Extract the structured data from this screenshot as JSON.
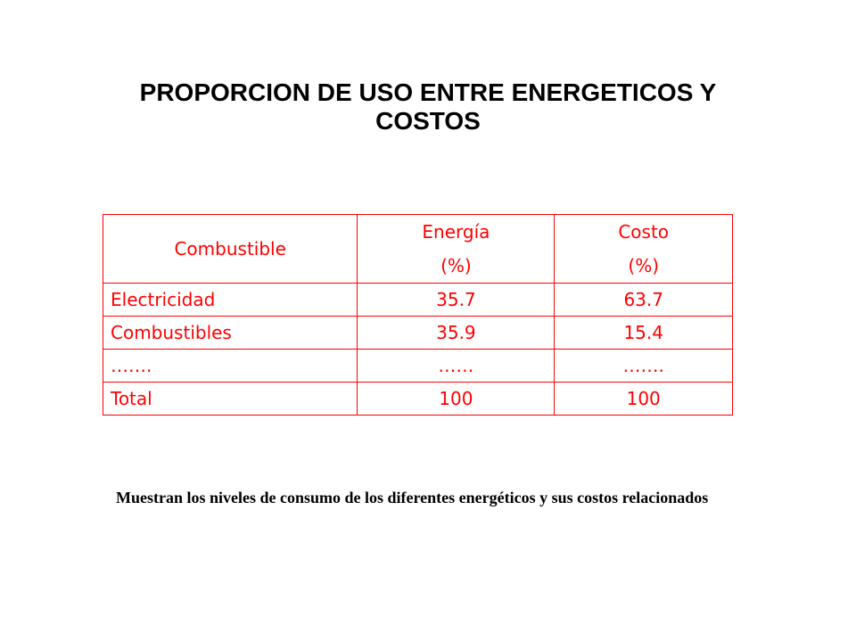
{
  "title": {
    "line1": "PROPORCION DE USO ENTRE ENERGETICOS Y",
    "line2": "COSTOS"
  },
  "table": {
    "headers": {
      "col1": "Combustible",
      "col2_line1": "Energía",
      "col2_line2": "(%)",
      "col3_line1": "Costo",
      "col3_line2": "(%)"
    },
    "rows": [
      [
        "Electricidad",
        "35.7",
        "63.7"
      ],
      [
        "Combustibles",
        "35.9",
        "15.4"
      ],
      [
        "…….",
        "……",
        "……."
      ],
      [
        "Total",
        "100",
        "100"
      ]
    ]
  },
  "caption": "Muestran los niveles de consumo de los diferentes energéticos y sus costos relacionados",
  "colors": {
    "table_text": "#ff0000",
    "table_border": "#ff0000",
    "title_text": "#000000"
  }
}
